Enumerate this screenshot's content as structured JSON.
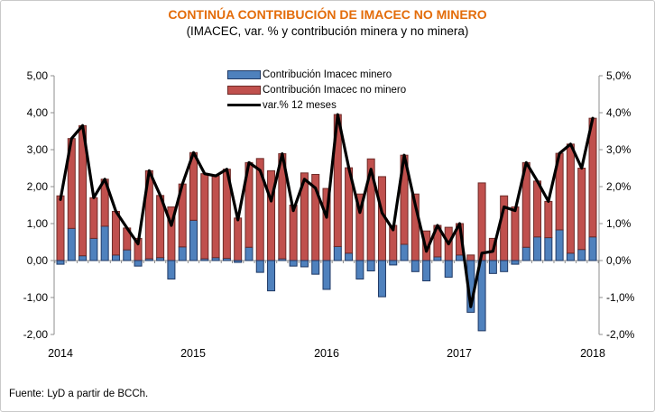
{
  "title": "CONTINÚA CONTRIBUCIÓN DE IMACEC NO MINERO",
  "subtitle": "(IMACEC, var. % y contribución minera y no minera)",
  "source": "Fuente: LyD a partir de BCCh.",
  "colors": {
    "title": "#E36C0A",
    "minero_fill": "#4F81BD",
    "minero_border": "#1F3864",
    "no_minero_fill": "#C0504D",
    "no_minero_border": "#6E2B28",
    "line": "#000000",
    "axis": "#8C8C8C",
    "text": "#000000"
  },
  "legend": [
    {
      "label": "Contribución Imacec minero",
      "type": "bar",
      "color": "#4F81BD",
      "border": "#1F3864"
    },
    {
      "label": "Contribución Imacec no minero",
      "type": "bar",
      "color": "#C0504D",
      "border": "#6E2B28"
    },
    {
      "label": "var.% 12 meses",
      "type": "line",
      "color": "#000000"
    }
  ],
  "y_axis_left": {
    "labels": [
      "5,00",
      "4,00",
      "3,00",
      "2,00",
      "1,00",
      "0,00",
      "-1,00",
      "-2,00"
    ],
    "values": [
      5,
      4,
      3,
      2,
      1,
      0,
      -1,
      -2
    ]
  },
  "y_axis_right": {
    "labels": [
      "5,0%",
      "4,0%",
      "3,0%",
      "2,0%",
      "1,0%",
      "0,0%",
      "-1,0%",
      "-2,0%"
    ],
    "values": [
      5,
      4,
      3,
      2,
      1,
      0,
      -1,
      -2
    ]
  },
  "x_axis": {
    "year_labels": [
      "2014",
      "2015",
      "2016",
      "2017",
      "2018"
    ]
  },
  "chart_data": {
    "type": "bar",
    "subtype": "stacked contribution bars with line overlay",
    "title": "CONTINÚA CONTRIBUCIÓN DE IMACEC NO MINERO",
    "xlabel": "",
    "ylabel": "IMACEC, var. % y contribución minera y no minera",
    "ylim": [
      -2,
      5
    ],
    "grid": false,
    "legend_position": "top-center",
    "x_monthly": [
      "2014-01",
      "2014-02",
      "2014-03",
      "2014-04",
      "2014-05",
      "2014-06",
      "2014-07",
      "2014-08",
      "2014-09",
      "2014-10",
      "2014-11",
      "2014-12",
      "2015-01",
      "2015-02",
      "2015-03",
      "2015-04",
      "2015-05",
      "2015-06",
      "2015-07",
      "2015-08",
      "2015-09",
      "2015-10",
      "2015-11",
      "2015-12",
      "2016-01",
      "2016-02",
      "2016-03",
      "2016-04",
      "2016-05",
      "2016-06",
      "2016-07",
      "2016-08",
      "2016-09",
      "2016-10",
      "2016-11",
      "2016-12",
      "2017-01",
      "2017-02",
      "2017-03",
      "2017-04",
      "2017-05",
      "2017-06",
      "2017-07",
      "2017-08",
      "2017-09",
      "2017-10",
      "2017-11",
      "2017-12",
      "2018-01"
    ],
    "series": [
      {
        "name": "Contribución Imacec minero",
        "type": "bar",
        "values": [
          -0.1,
          0.87,
          0.13,
          0.6,
          0.93,
          0.15,
          0.29,
          -0.15,
          0.05,
          0.08,
          -0.5,
          0.37,
          1.09,
          0.05,
          0.08,
          0.06,
          -0.05,
          0.36,
          -0.32,
          -0.82,
          0.05,
          -0.15,
          -0.17,
          -0.37,
          -0.78,
          0.38,
          0.2,
          -0.5,
          -0.28,
          -0.98,
          -0.12,
          0.44,
          -0.3,
          -0.55,
          0.1,
          -0.45,
          0.15,
          -1.4,
          -1.9,
          -0.35,
          -0.3,
          -0.1,
          0.36,
          0.64,
          0.62,
          0.83,
          0.2,
          0.3,
          0.64
        ]
      },
      {
        "name": "Contribución Imacec no minero",
        "type": "bar",
        "values": [
          1.75,
          2.43,
          3.52,
          1.1,
          1.27,
          1.18,
          0.59,
          0.6,
          2.38,
          1.68,
          1.45,
          1.7,
          1.83,
          2.3,
          2.21,
          2.41,
          1.15,
          2.29,
          2.76,
          2.43,
          2.84,
          1.5,
          2.37,
          2.33,
          1.95,
          3.57,
          2.31,
          1.8,
          2.75,
          2.27,
          0.95,
          2.41,
          1.8,
          0.8,
          0.85,
          0.9,
          0.85,
          0.15,
          2.1,
          0.6,
          1.75,
          1.45,
          2.29,
          1.51,
          0.98,
          2.07,
          2.95,
          2.2,
          3.21
        ]
      },
      {
        "name": "var.% 12 meses",
        "type": "line",
        "values": [
          1.65,
          3.3,
          3.65,
          1.7,
          2.2,
          1.33,
          0.88,
          0.45,
          2.43,
          1.76,
          0.95,
          2.07,
          2.92,
          2.35,
          2.29,
          2.47,
          1.1,
          2.65,
          2.44,
          1.61,
          2.89,
          1.35,
          2.2,
          1.96,
          1.17,
          3.95,
          2.51,
          1.3,
          2.47,
          1.29,
          0.83,
          2.85,
          1.5,
          0.25,
          0.95,
          0.45,
          1.0,
          -1.25,
          0.2,
          0.25,
          1.45,
          1.35,
          2.65,
          2.15,
          1.6,
          2.9,
          3.15,
          2.5,
          3.85
        ]
      }
    ]
  }
}
